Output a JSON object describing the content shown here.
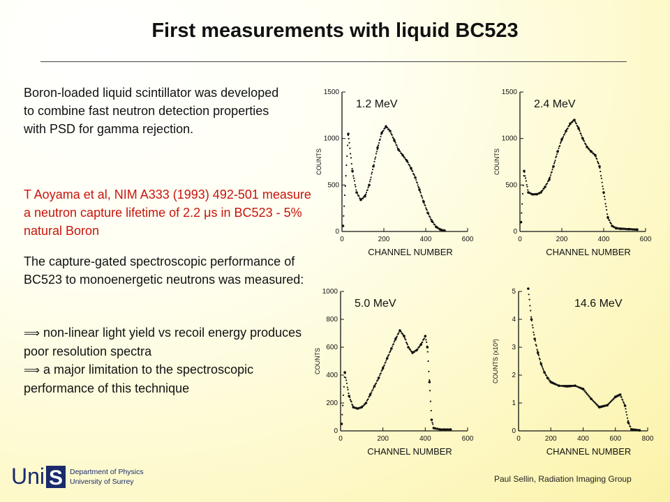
{
  "title": "First measurements with liquid BC523",
  "body": {
    "p1": "Boron-loaded liquid scintillator was developed to combine fast neutron detection properties with PSD for gamma rejection.",
    "p2_before": "T Aoyama et al, NIM A333 (1993) 492-501 measure a neutron capture lifetime of 2.2 ",
    "p2_mu": "μ",
    "p2_after": "s in BC523 - 5% natural Boron",
    "p3": "The capture-gated spectroscopic performance of BC523 to monoenergetic neutrons was measured:",
    "bullet_symbol": "⟹",
    "b1": "non-linear light yield vs recoil energy produces poor resolution spectra",
    "b2": "a major limitation to the spectroscopic performance of this technique"
  },
  "figure": {
    "xlabel": "CHANNEL NUMBER",
    "ylabel": "COUNTS",
    "panels": [
      {
        "energy": "1.2 MeV"
      },
      {
        "energy": "2.4 MeV"
      },
      {
        "energy": "5.0 MeV"
      },
      {
        "energy": "14.6 MeV",
        "ylabel": "COUNTS (x10³)"
      }
    ]
  },
  "chart_data": [
    {
      "type": "scatter",
      "title": "1.2 MeV",
      "xlabel": "CHANNEL NUMBER",
      "ylabel": "COUNTS",
      "xlim": [
        0,
        600
      ],
      "ylim": [
        0,
        1500
      ],
      "xticks": [
        "0",
        "200",
        "400",
        "600"
      ],
      "yticks": [
        "0",
        "500",
        "1000",
        "1500"
      ],
      "x": [
        5,
        30,
        50,
        70,
        90,
        110,
        130,
        150,
        170,
        190,
        210,
        230,
        250,
        270,
        290,
        310,
        330,
        350,
        370,
        390,
        410,
        430,
        450,
        470,
        490
      ],
      "y": [
        60,
        1050,
        650,
        420,
        340,
        380,
        500,
        700,
        900,
        1060,
        1130,
        1080,
        980,
        880,
        820,
        760,
        680,
        580,
        450,
        320,
        200,
        110,
        50,
        20,
        10
      ]
    },
    {
      "type": "scatter",
      "title": "2.4 MeV",
      "xlabel": "CHANNEL NUMBER",
      "ylabel": "COUNTS",
      "xlim": [
        0,
        600
      ],
      "ylim": [
        0,
        1500
      ],
      "xticks": [
        "0",
        "200",
        "400",
        "600"
      ],
      "yticks": [
        "0",
        "500",
        "1000",
        "1500"
      ],
      "x": [
        5,
        20,
        40,
        60,
        80,
        100,
        120,
        140,
        160,
        180,
        200,
        220,
        240,
        260,
        280,
        300,
        320,
        340,
        360,
        380,
        400,
        420,
        440,
        460,
        480,
        520,
        560
      ],
      "y": [
        100,
        650,
        420,
        400,
        400,
        420,
        480,
        560,
        700,
        860,
        990,
        1080,
        1160,
        1200,
        1110,
        1000,
        910,
        860,
        820,
        700,
        420,
        150,
        60,
        35,
        30,
        25,
        20
      ]
    },
    {
      "type": "scatter",
      "title": "5.0 MeV",
      "xlabel": "CHANNEL NUMBER",
      "ylabel": "COUNTS",
      "xlim": [
        0,
        600
      ],
      "ylim": [
        0,
        1000
      ],
      "xticks": [
        "0",
        "200",
        "400",
        "600"
      ],
      "yticks": [
        "0",
        "200",
        "400",
        "600",
        "800",
        "1000"
      ],
      "x": [
        5,
        20,
        40,
        60,
        80,
        100,
        120,
        140,
        160,
        180,
        200,
        220,
        240,
        260,
        280,
        300,
        320,
        340,
        360,
        380,
        400,
        410,
        420,
        430,
        440,
        470,
        520
      ],
      "y": [
        50,
        420,
        250,
        170,
        160,
        170,
        200,
        260,
        320,
        380,
        450,
        520,
        590,
        660,
        720,
        680,
        600,
        560,
        580,
        620,
        680,
        600,
        350,
        80,
        20,
        10,
        10
      ]
    },
    {
      "type": "scatter",
      "title": "14.6 MeV",
      "xlabel": "CHANNEL NUMBER",
      "ylabel": "COUNTS (x10³)",
      "xlim": [
        0,
        800
      ],
      "ylim": [
        0,
        5
      ],
      "xticks": [
        "0",
        "200",
        "400",
        "600",
        "800"
      ],
      "yticks": [
        "0",
        "1",
        "2",
        "3",
        "4",
        "5"
      ],
      "x": [
        60,
        80,
        100,
        120,
        140,
        160,
        180,
        200,
        250,
        300,
        350,
        400,
        450,
        500,
        550,
        600,
        630,
        660,
        680,
        700,
        750
      ],
      "y": [
        5.1,
        4.0,
        3.3,
        2.8,
        2.4,
        2.1,
        1.9,
        1.75,
        1.62,
        1.6,
        1.62,
        1.5,
        1.15,
        0.85,
        0.92,
        1.22,
        1.3,
        0.9,
        0.3,
        0.05,
        0.02
      ]
    }
  ],
  "footer": {
    "credit": "Paul Sellin, Radiation Imaging Group",
    "logo_text": "UniS",
    "dept_line1": "Department of Physics",
    "dept_line2": "University of Surrey"
  },
  "colors": {
    "title": "#111111",
    "reference": "#c8140a",
    "plot_ink": "#111111"
  }
}
